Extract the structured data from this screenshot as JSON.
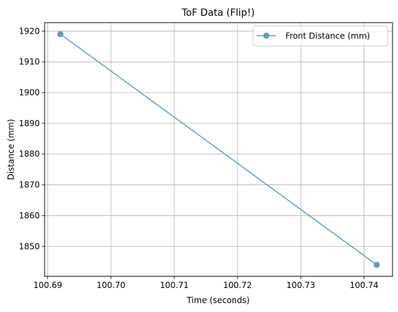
{
  "chart_data": {
    "type": "line",
    "title": "ToF Data (Flip!)",
    "xlabel": "Time (seconds)",
    "ylabel": "Distance (mm)",
    "x_ticks": [
      "100.69",
      "100.70",
      "100.71",
      "100.72",
      "100.73",
      "100.74"
    ],
    "y_ticks": [
      "1850",
      "1860",
      "1870",
      "1880",
      "1890",
      "1900",
      "1910",
      "1920"
    ],
    "xlim": [
      100.6895,
      100.7445
    ],
    "ylim": [
      1840.25,
      1922.75
    ],
    "grid": true,
    "legend_position": "top-right",
    "series": [
      {
        "name": "Front Distance (mm)",
        "color": "#5b9ec9",
        "marker": "circle",
        "points": [
          {
            "x": 100.692,
            "y": 1919
          },
          {
            "x": 100.742,
            "y": 1844
          }
        ]
      }
    ]
  }
}
